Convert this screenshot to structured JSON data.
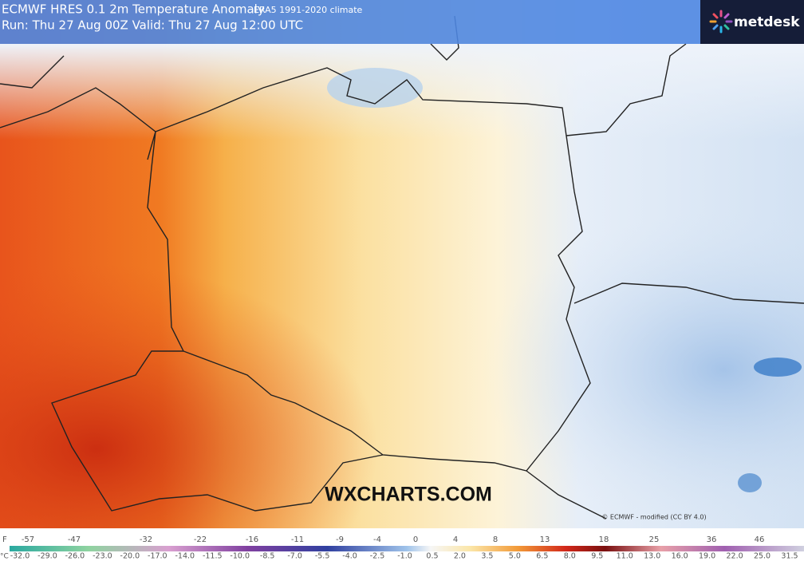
{
  "header": {
    "title": "ECMWF HRES 0.1 2m Temperature Anomaly",
    "climate": "ERA5 1991-2020 climate",
    "run": "Run: Thu 27 Aug 00Z Valid: Thu 27 Aug 12:00 UTC",
    "logo": "metdesk"
  },
  "watermark": "WXCHARTS.COM",
  "credit": "© ECMWF - modified (CC BY 4.0)",
  "legend": {
    "f_unit": "F",
    "f_labels": [
      "-57",
      "-47",
      "-32",
      "-22",
      "-16",
      "-11",
      "-9",
      "-4",
      "0",
      "4",
      "8",
      "13",
      "18",
      "25",
      "36",
      "46"
    ],
    "c_unit": "°C",
    "c_labels": [
      "-32.0",
      "-29.0",
      "-26.0",
      "-23.0",
      "-20.0",
      "-17.0",
      "-14.0",
      "-11.5",
      "-10.0",
      "-8.5",
      "-7.0",
      "-5.5",
      "-4.0",
      "-2.5",
      "-1.0",
      "0.5",
      "2.0",
      "3.5",
      "5.0",
      "6.5",
      "8.0",
      "9.5",
      "11.0",
      "13.0",
      "16.0",
      "19.0",
      "22.0",
      "25.0",
      "31.5"
    ]
  }
}
